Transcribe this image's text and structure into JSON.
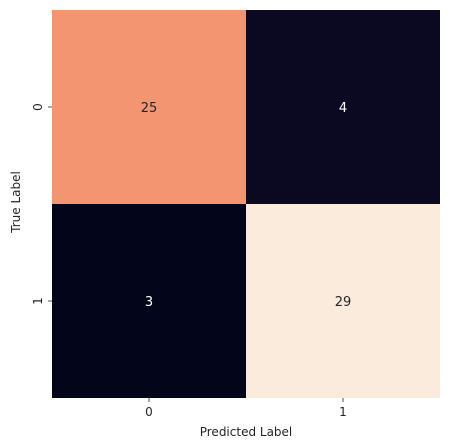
{
  "chart_data": {
    "type": "heatmap",
    "title": "",
    "xlabel": "Predicted Label",
    "ylabel": "True Label",
    "x_categories": [
      "0",
      "1"
    ],
    "y_categories": [
      "0",
      "1"
    ],
    "values": [
      [
        25,
        4
      ],
      [
        3,
        29
      ]
    ],
    "colorbar": false,
    "colormap": "rocket"
  }
}
